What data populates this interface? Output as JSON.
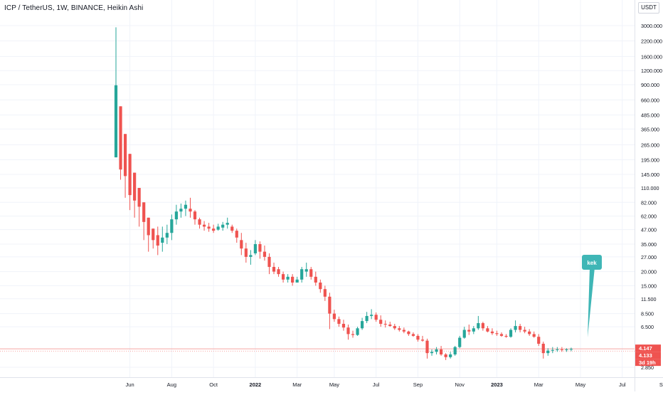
{
  "header": {
    "title": "ICP / TetherUS, 1W, BINANCE, Heikin Ashi",
    "currency": "USDT"
  },
  "colors": {
    "up": "#26a69a",
    "down": "#ef5350",
    "grid": "#f0f3fa",
    "axis_text": "#131722",
    "annotation_fill": "#3fb6b6",
    "price_line": "#f7a6a4"
  },
  "price_labels": {
    "last": "4.147",
    "current": "4.133",
    "countdown": "3d 19h"
  },
  "annotation": {
    "text": "kek"
  },
  "chart_data": {
    "type": "candlestick",
    "y_scale": "log",
    "y_ticks": [
      "3000.000",
      "2200.000",
      "1600.000",
      "1200.000",
      "900.000",
      "660.000",
      "485.000",
      "365.000",
      "265.000",
      "195.000",
      "145.000",
      "110.000",
      "82.000",
      "62.000",
      "47.000",
      "35.000",
      "27.000",
      "20.000",
      "15.000",
      "11.500",
      "8.500",
      "6.500",
      "2.850"
    ],
    "x_ticks": [
      "Jun",
      "Aug",
      "Oct",
      "2022",
      "Mar",
      "May",
      "Jul",
      "Sep",
      "Nov",
      "2023",
      "Mar",
      "May",
      "Jul",
      "Sep"
    ],
    "x_tick_weeks": [
      3,
      12,
      21,
      30,
      39,
      47,
      56,
      65,
      74,
      82,
      91,
      100,
      109,
      118
    ],
    "ohlc": [
      [
        205,
        2900,
        205,
        890
      ],
      [
        580,
        580,
        130,
        160
      ],
      [
        330,
        330,
        90,
        140
      ],
      [
        220,
        220,
        70,
        95
      ],
      [
        150,
        150,
        60,
        85
      ],
      [
        110,
        110,
        50,
        75
      ],
      [
        82,
        82,
        38,
        55
      ],
      [
        60,
        60,
        30,
        42
      ],
      [
        48,
        48,
        32,
        38
      ],
      [
        42,
        50,
        28,
        34
      ],
      [
        36,
        50,
        30,
        40
      ],
      [
        40,
        52,
        35,
        44
      ],
      [
        44,
        64,
        38,
        58
      ],
      [
        58,
        78,
        52,
        68
      ],
      [
        68,
        80,
        60,
        72
      ],
      [
        72,
        85,
        62,
        78
      ],
      [
        72,
        90,
        60,
        68
      ],
      [
        68,
        70,
        52,
        58
      ],
      [
        58,
        60,
        48,
        52
      ],
      [
        52,
        56,
        46,
        50
      ],
      [
        50,
        54,
        45,
        48
      ],
      [
        48,
        52,
        44,
        46
      ],
      [
        47,
        53,
        46,
        50
      ],
      [
        49,
        55,
        46,
        52
      ],
      [
        52,
        60,
        48,
        54
      ],
      [
        50,
        52,
        44,
        46
      ],
      [
        46,
        48,
        36,
        40
      ],
      [
        38,
        44,
        28,
        32
      ],
      [
        32,
        36,
        24,
        27
      ],
      [
        27,
        31,
        23,
        28
      ],
      [
        29,
        38,
        28,
        35
      ],
      [
        35,
        37,
        26,
        30
      ],
      [
        30,
        34,
        25,
        27
      ],
      [
        27,
        29,
        19,
        22
      ],
      [
        22,
        24,
        19,
        20
      ],
      [
        21,
        22,
        18,
        19
      ],
      [
        19,
        20,
        16,
        17
      ],
      [
        17,
        19,
        16,
        18
      ],
      [
        18,
        19,
        15,
        16
      ],
      [
        16,
        18,
        16,
        17
      ],
      [
        17,
        22,
        16,
        21
      ],
      [
        20,
        24,
        18,
        21
      ],
      [
        21,
        22,
        17,
        18
      ],
      [
        18,
        20,
        15,
        16
      ],
      [
        16,
        17,
        13,
        14
      ],
      [
        14,
        15,
        11,
        12
      ],
      [
        12,
        13,
        6.2,
        8.5
      ],
      [
        8.5,
        9.2,
        7.2,
        7.6
      ],
      [
        7.6,
        8,
        6.5,
        6.9
      ],
      [
        6.9,
        7.5,
        6.0,
        6.4
      ],
      [
        6.4,
        6.8,
        5.0,
        5.6
      ],
      [
        5.6,
        6,
        5.2,
        5.5
      ],
      [
        5.5,
        6.5,
        5.4,
        6.3
      ],
      [
        6.3,
        7.8,
        6.1,
        7.3
      ],
      [
        7.3,
        8.8,
        7.0,
        8.1
      ],
      [
        8.1,
        9.3,
        7.6,
        8.3
      ],
      [
        8.3,
        8.7,
        7.2,
        7.5
      ],
      [
        7.5,
        8.2,
        6.5,
        6.9
      ],
      [
        6.9,
        7.4,
        6.4,
        6.8
      ],
      [
        6.8,
        7.2,
        6.5,
        6.6
      ],
      [
        6.6,
        6.9,
        6.1,
        6.3
      ],
      [
        6.3,
        6.6,
        5.9,
        6.1
      ],
      [
        6.1,
        6.4,
        5.7,
        5.9
      ],
      [
        5.9,
        6.0,
        5.4,
        5.6
      ],
      [
        5.6,
        5.8,
        5.3,
        5.4
      ],
      [
        5.4,
        5.6,
        4.8,
        5.0
      ],
      [
        5.0,
        5.4,
        4.8,
        4.9
      ],
      [
        4.9,
        5.1,
        3.4,
        3.8
      ],
      [
        3.8,
        4.1,
        3.6,
        3.9
      ],
      [
        3.9,
        4.3,
        3.7,
        4.1
      ],
      [
        4.1,
        4.4,
        3.6,
        3.7
      ],
      [
        3.7,
        3.8,
        3.3,
        3.5
      ],
      [
        3.5,
        3.9,
        3.4,
        3.7
      ],
      [
        3.7,
        4.4,
        3.6,
        4.3
      ],
      [
        4.3,
        5.4,
        4.2,
        5.2
      ],
      [
        5.2,
        6.5,
        5.1,
        6.1
      ],
      [
        6.1,
        6.8,
        5.5,
        5.9
      ],
      [
        5.9,
        6.6,
        5.6,
        6.3
      ],
      [
        6.3,
        8.1,
        6.1,
        7.0
      ],
      [
        7.0,
        7.2,
        6.0,
        6.3
      ],
      [
        6.3,
        6.6,
        5.8,
        5.9
      ],
      [
        5.9,
        6.3,
        5.5,
        5.7
      ],
      [
        5.7,
        6.0,
        5.4,
        5.6
      ],
      [
        5.6,
        5.8,
        5.3,
        5.4
      ],
      [
        5.4,
        5.6,
        5.2,
        5.3
      ],
      [
        5.3,
        6.3,
        5.2,
        6.1
      ],
      [
        6.1,
        7.4,
        5.8,
        6.6
      ],
      [
        6.6,
        6.9,
        5.8,
        6.1
      ],
      [
        6.1,
        6.5,
        5.7,
        5.9
      ],
      [
        5.9,
        6.2,
        5.4,
        5.6
      ],
      [
        5.6,
        5.9,
        5.2,
        5.3
      ],
      [
        5.3,
        5.6,
        4.4,
        4.6
      ],
      [
        4.6,
        4.8,
        3.4,
        3.8
      ],
      [
        3.8,
        4.2,
        3.6,
        4.0
      ],
      [
        4.0,
        4.3,
        3.8,
        4.05
      ],
      [
        4.05,
        4.3,
        3.9,
        4.1
      ],
      [
        4.1,
        4.3,
        3.9,
        4.05
      ],
      [
        4.05,
        4.2,
        3.9,
        4.1
      ],
      [
        4.1,
        4.25,
        3.95,
        4.14
      ]
    ]
  }
}
